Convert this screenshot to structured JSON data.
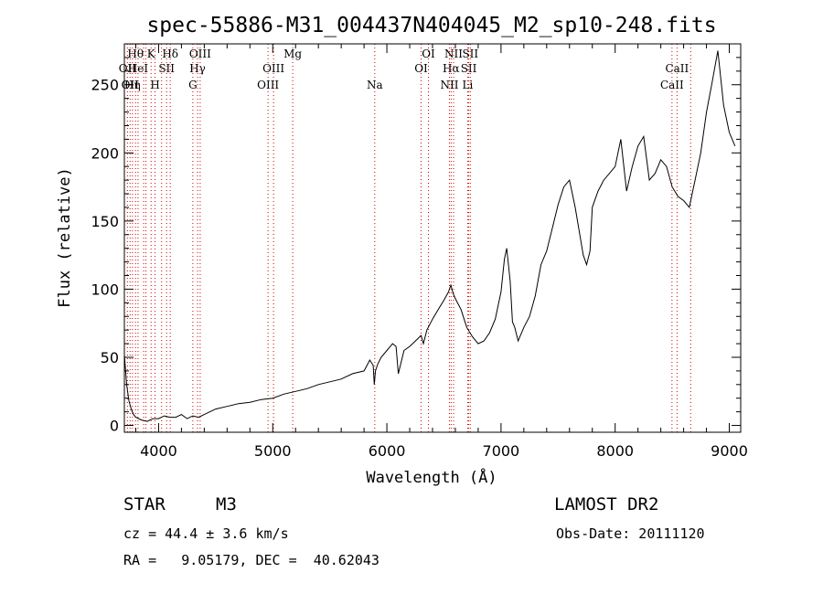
{
  "chart_data": {
    "type": "line",
    "title": "spec-55886-M31_004437N404045_M2_sp10-248.fits",
    "xlabel": "Wavelength (Å)",
    "ylabel": "Flux (relative)",
    "xlim": [
      3700,
      9100
    ],
    "ylim": [
      -5,
      280
    ],
    "xticks": [
      4000,
      5000,
      6000,
      7000,
      8000,
      9000
    ],
    "xtick_labels": [
      "4000",
      "5000",
      "6000",
      "7000",
      "8000",
      "9000"
    ],
    "yticks": [
      0,
      50,
      100,
      150,
      200,
      250
    ],
    "ytick_labels": [
      "0",
      "50",
      "100",
      "150",
      "200",
      "250"
    ],
    "line_color": "#000000",
    "marker_color": "#cc0000",
    "grid": false,
    "spectrum": {
      "x": [
        3700,
        3720,
        3740,
        3760,
        3780,
        3800,
        3850,
        3900,
        3950,
        4000,
        4050,
        4100,
        4150,
        4200,
        4250,
        4300,
        4350,
        4400,
        4450,
        4500,
        4600,
        4700,
        4800,
        4900,
        5000,
        5100,
        5200,
        5300,
        5400,
        5500,
        5600,
        5700,
        5800,
        5850,
        5880,
        5890,
        5900,
        5920,
        5950,
        6000,
        6050,
        6080,
        6100,
        6150,
        6200,
        6250,
        6300,
        6320,
        6350,
        6400,
        6450,
        6500,
        6540,
        6560,
        6580,
        6600,
        6650,
        6700,
        6750,
        6800,
        6850,
        6900,
        6950,
        7000,
        7030,
        7050,
        7080,
        7100,
        7120,
        7150,
        7200,
        7250,
        7300,
        7350,
        7400,
        7450,
        7500,
        7550,
        7600,
        7650,
        7700,
        7720,
        7750,
        7780,
        7800,
        7850,
        7900,
        7950,
        8000,
        8050,
        8100,
        8150,
        8200,
        8250,
        8300,
        8350,
        8400,
        8450,
        8500,
        8550,
        8600,
        8650,
        8700,
        8750,
        8800,
        8850,
        8900,
        8950,
        9000,
        9050
      ],
      "y": [
        52,
        30,
        18,
        12,
        8,
        6,
        4,
        3,
        5,
        5,
        7,
        6,
        6,
        8,
        5,
        7,
        6,
        8,
        10,
        12,
        14,
        16,
        17,
        19,
        20,
        23,
        25,
        27,
        30,
        32,
        34,
        38,
        40,
        48,
        44,
        30,
        40,
        45,
        50,
        55,
        60,
        58,
        38,
        55,
        58,
        62,
        66,
        60,
        70,
        78,
        85,
        92,
        98,
        103,
        97,
        93,
        85,
        72,
        65,
        60,
        62,
        68,
        78,
        98,
        122,
        130,
        106,
        76,
        72,
        62,
        72,
        80,
        95,
        118,
        128,
        145,
        162,
        175,
        180,
        160,
        135,
        125,
        118,
        128,
        160,
        172,
        180,
        185,
        190,
        210,
        172,
        190,
        205,
        212,
        180,
        185,
        195,
        190,
        175,
        168,
        165,
        160,
        180,
        200,
        230,
        252,
        275,
        235,
        215,
        205
      ]
    },
    "line_markers": [
      {
        "wavelength": 3727,
        "label": "OII",
        "row": 2
      },
      {
        "wavelength": 3750,
        "label": "OII",
        "row": 3
      },
      {
        "wavelength": 3771,
        "label": "Hη",
        "row": 3
      },
      {
        "wavelength": 3798,
        "label": "Hθ",
        "row": 1
      },
      {
        "wavelength": 3820,
        "label": "HeI",
        "row": 2
      },
      {
        "wavelength": 3869,
        "label": "",
        "row": 0
      },
      {
        "wavelength": 3889,
        "label": "",
        "row": 0
      },
      {
        "wavelength": 3934,
        "label": "K",
        "row": 1
      },
      {
        "wavelength": 3969,
        "label": "H",
        "row": 3
      },
      {
        "wavelength": 4026,
        "label": "",
        "row": 0
      },
      {
        "wavelength": 4070,
        "label": "SII",
        "row": 2
      },
      {
        "wavelength": 4102,
        "label": "Hδ",
        "row": 1
      },
      {
        "wavelength": 4300,
        "label": "G",
        "row": 3
      },
      {
        "wavelength": 4341,
        "label": "Hγ",
        "row": 2
      },
      {
        "wavelength": 4364,
        "label": "OIII",
        "row": 1
      },
      {
        "wavelength": 4959,
        "label": "OIII",
        "row": 3
      },
      {
        "wavelength": 5007,
        "label": "OIII",
        "row": 2
      },
      {
        "wavelength": 5175,
        "label": "Mg",
        "row": 1
      },
      {
        "wavelength": 5894,
        "label": "Na",
        "row": 3
      },
      {
        "wavelength": 6300,
        "label": "OI",
        "row": 2
      },
      {
        "wavelength": 6364,
        "label": "OI",
        "row": 1
      },
      {
        "wavelength": 6548,
        "label": "NII",
        "row": 3
      },
      {
        "wavelength": 6563,
        "label": "Hα",
        "row": 2
      },
      {
        "wavelength": 6584,
        "label": "NII",
        "row": 1
      },
      {
        "wavelength": 6708,
        "label": "Li",
        "row": 3
      },
      {
        "wavelength": 6717,
        "label": "SII",
        "row": 2
      },
      {
        "wavelength": 6731,
        "label": "SII",
        "row": 1
      },
      {
        "wavelength": 8498,
        "label": "CaII",
        "row": 3
      },
      {
        "wavelength": 8542,
        "label": "CaII",
        "row": 2
      },
      {
        "wavelength": 8662,
        "label": "",
        "row": 0
      }
    ]
  },
  "info": {
    "class_label": "STAR",
    "subclass_label": "M3",
    "survey_label": "LAMOST DR2",
    "cz_line": "cz = 44.4 ± 3.6 km/s",
    "obs_date_line": "Obs-Date: 20111120",
    "coords_line": "RA =   9.05179, DEC =  40.62043"
  }
}
